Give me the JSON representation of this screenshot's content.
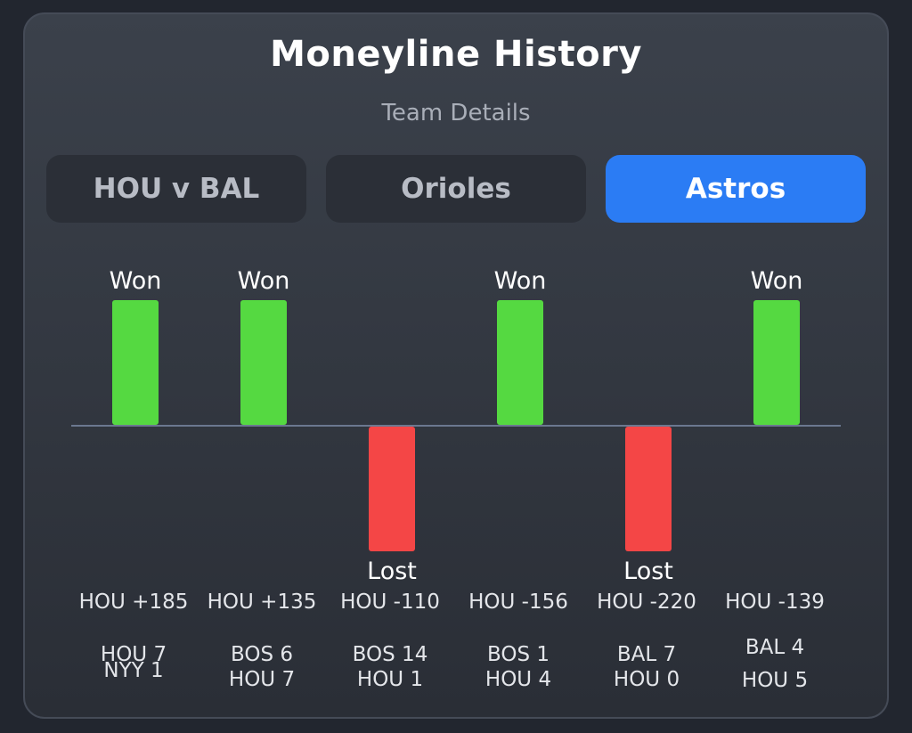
{
  "header": {
    "title": "Moneyline History",
    "subtitle": "Team Details"
  },
  "tabs": [
    {
      "label": "HOU v BAL",
      "active": false
    },
    {
      "label": "Orioles",
      "active": false
    },
    {
      "label": "Astros",
      "active": true
    }
  ],
  "colors": {
    "win": "#55d941",
    "loss": "#f44646",
    "accent": "#2b7cf4",
    "baseline": "#6b7890"
  },
  "chart_data": {
    "type": "bar",
    "categories": [
      "HOU +185",
      "HOU +135",
      "HOU -110",
      "HOU -156",
      "HOU -220",
      "HOU -139"
    ],
    "values": [
      1,
      1,
      -1,
      1,
      -1,
      1
    ],
    "results": [
      "Won",
      "Won",
      "Lost",
      "Won",
      "Lost",
      "Won"
    ],
    "ylim": [
      -1,
      1
    ]
  },
  "games": [
    {
      "odds": "HOU +185",
      "score_top": "HOU 7",
      "score_bottom": "NYY 1"
    },
    {
      "odds": "HOU +135",
      "score_top": "BOS 6",
      "score_bottom": "HOU 7"
    },
    {
      "odds": "HOU -110",
      "score_top": "BOS 14",
      "score_bottom": "HOU 1"
    },
    {
      "odds": "HOU -156",
      "score_top": "BOS 1",
      "score_bottom": "HOU 4"
    },
    {
      "odds": "HOU -220",
      "score_top": "BAL 7",
      "score_bottom": "HOU 0"
    },
    {
      "odds": "HOU -139",
      "score_top": "BAL 4",
      "score_bottom": "HOU 5"
    }
  ]
}
